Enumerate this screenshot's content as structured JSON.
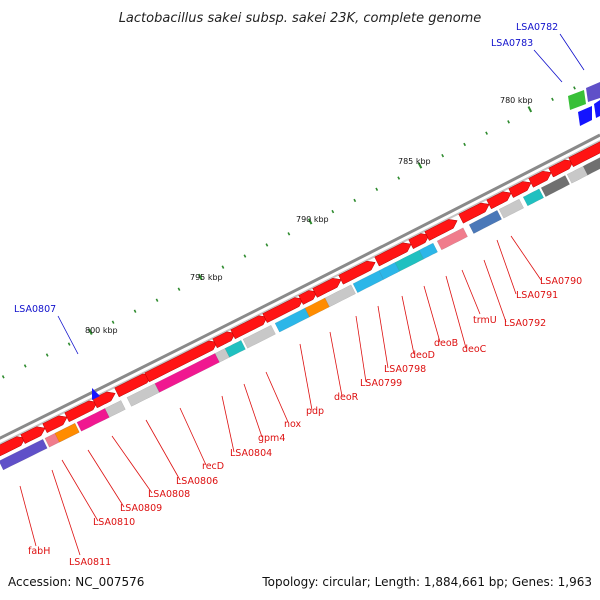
{
  "title": "Lactobacillus sakei subsp. sakei 23K, complete genome",
  "footer": {
    "accession": "Accession: NC_007576",
    "summary": "Topology: circular; Length: 1,884,661 bp; Genes: 1,963"
  },
  "colors": {
    "backbone": "#8a8a8a",
    "tick": "#2e8b2e",
    "feature_forward": "#ff1414",
    "label_red": "#dd1111",
    "label_blue": "#1111cc",
    "gray_gene": "#c8c8c8",
    "cyan_gene": "#2cb6e8",
    "teal_gene": "#20c0c0",
    "magenta_gene": "#f01890",
    "orange_gene": "#ff8c00",
    "pink_gene": "#f07c8c",
    "purple_gene": "#6050c8",
    "steel_gene": "#4a78b8",
    "green_gene": "#38c038",
    "blue_gene": "#1414ff",
    "dark_gray_gene": "#707070"
  },
  "scale_labels": [
    "780 kbp",
    "785 kbp",
    "790 kbp",
    "795 kbp",
    "800 kbp"
  ],
  "gene_labels_red": [
    "LSA0790",
    "LSA0791",
    "LSA0792",
    "trmU",
    "deoC",
    "deoB",
    "deoD",
    "LSA0798",
    "LSA0799",
    "deoR",
    "pdp",
    "nox",
    "gpm4",
    "LSA0804",
    "recD",
    "LSA0806",
    "LSA0808",
    "LSA0809",
    "LSA0810",
    "LSA0811",
    "fabH"
  ],
  "gene_labels_blue": [
    "LSA0782",
    "LSA0783",
    "LSA0807"
  ]
}
